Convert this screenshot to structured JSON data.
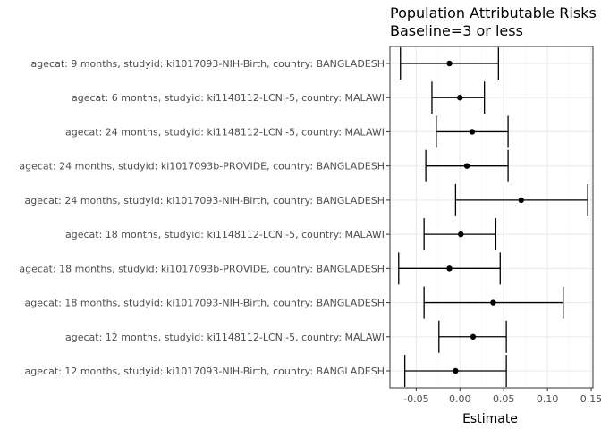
{
  "chart_data": {
    "type": "forest",
    "title": "Population Attributable Risks",
    "subtitle": "Baseline=3 or less",
    "xlabel": "Estimate",
    "ylabel": "",
    "xlim": [
      -0.08,
      0.152
    ],
    "xticks": [
      -0.05,
      0.0,
      0.05,
      0.1,
      0.15
    ],
    "xtick_labels": [
      "-0.05",
      "0.00",
      "0.05",
      "0.10",
      "0.15"
    ],
    "grid": true,
    "legend": "none",
    "colors": {
      "mark": "#000000",
      "grid_major": "#ebebeb",
      "grid_minor": "#f5f5f5",
      "border": "#333333"
    },
    "categories": [
      "agecat: 9 months, studyid: ki1017093-NIH-Birth, country: BANGLADESH",
      "agecat: 6 months, studyid: ki1148112-LCNI-5, country: MALAWI",
      "agecat: 24 months, studyid: ki1148112-LCNI-5, country: MALAWI",
      "agecat: 24 months, studyid: ki1017093b-PROVIDE, country: BANGLADESH",
      "agecat: 24 months, studyid: ki1017093-NIH-Birth, country: BANGLADESH",
      "agecat: 18 months, studyid: ki1148112-LCNI-5, country: MALAWI",
      "agecat: 18 months, studyid: ki1017093b-PROVIDE, country: BANGLADESH",
      "agecat: 18 months, studyid: ki1017093-NIH-Birth, country: BANGLADESH",
      "agecat: 12 months, studyid: ki1148112-LCNI-5, country: MALAWI",
      "agecat: 12 months, studyid: ki1017093-NIH-Birth, country: BANGLADESH"
    ],
    "estimates": [
      -0.012,
      0.0,
      0.014,
      0.008,
      0.07,
      0.001,
      -0.012,
      0.038,
      0.015,
      -0.005
    ],
    "lower": [
      -0.068,
      -0.032,
      -0.027,
      -0.039,
      -0.005,
      -0.041,
      -0.07,
      -0.041,
      -0.024,
      -0.063
    ],
    "upper": [
      0.044,
      0.028,
      0.055,
      0.055,
      0.146,
      0.041,
      0.046,
      0.118,
      0.053,
      0.053
    ]
  }
}
